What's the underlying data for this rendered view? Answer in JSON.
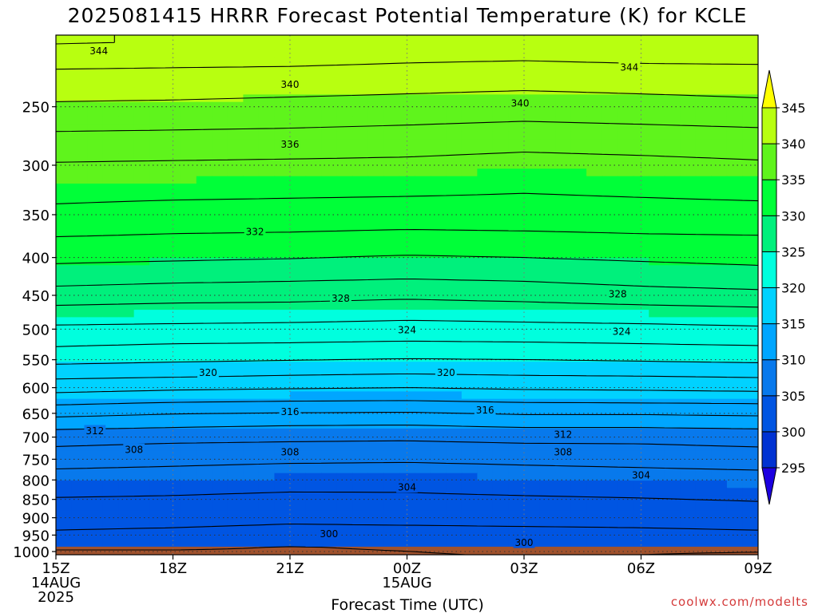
{
  "chart_data": {
    "type": "heatmap",
    "title": "2025081415 HRRR Forecast Potential Temperature (K) for KCLE",
    "xlabel": "Forecast Time (UTC)",
    "ylabel": "",
    "credit": "coolwx.com/modelts",
    "x_ticks": [
      {
        "h": 0,
        "lines": [
          "15Z",
          "14AUG",
          "2025"
        ]
      },
      {
        "h": 3,
        "lines": [
          "18Z"
        ]
      },
      {
        "h": 6,
        "lines": [
          "21Z"
        ]
      },
      {
        "h": 9,
        "lines": [
          "00Z",
          "15AUG"
        ]
      },
      {
        "h": 12,
        "lines": [
          "03Z"
        ]
      },
      {
        "h": 15,
        "lines": [
          "06Z"
        ]
      },
      {
        "h": 18,
        "lines": [
          "09Z"
        ]
      }
    ],
    "xlim": [
      0,
      18
    ],
    "y_ticks": [
      250,
      300,
      350,
      400,
      450,
      500,
      550,
      600,
      650,
      700,
      750,
      800,
      850,
      900,
      950,
      1000
    ],
    "ylim_hPa": [
      200,
      1010
    ],
    "y_scale": "log-pressure, inverted",
    "grid": "dotted",
    "colorbar": {
      "levels": [
        295,
        300,
        305,
        310,
        315,
        320,
        325,
        330,
        335,
        340,
        345
      ],
      "labels": [
        "295",
        "300",
        "305",
        "310",
        "315",
        "320",
        "325",
        "330",
        "335",
        "340",
        "345"
      ],
      "colors": [
        "#1c00e0",
        "#0032d2",
        "#0055e2",
        "#0879ec",
        "#00a6ff",
        "#00d2ff",
        "#00ffde",
        "#00f07c",
        "#00ff38",
        "#5ff41c",
        "#b8ff10",
        "#ffff00"
      ],
      "under_color": "#1c00e0",
      "over_color": "#ffff00"
    },
    "ground_color": "#a0522d",
    "ground_top_hPa": 985,
    "hours": [
      0,
      3,
      6,
      9,
      12,
      15,
      18
    ],
    "profile_pressures_hPa": [
      1000,
      975,
      950,
      925,
      900,
      875,
      850,
      825,
      800,
      775,
      750,
      725,
      700,
      675,
      650,
      625,
      600,
      575,
      550,
      525,
      500,
      475,
      450,
      425,
      400,
      375,
      350,
      325,
      300,
      275,
      250,
      225,
      205
    ],
    "theta_K": [
      [
        299.6,
        300.8,
        301.6,
        302.3,
        302.9,
        303.4,
        303.9,
        304.4,
        305.1,
        305.9,
        306.9,
        307.8,
        308.9,
        310.6,
        312.6,
        314.7,
        316.8,
        318.7,
        320.6,
        322.2,
        323.6,
        325.2,
        327.1,
        328.9,
        330.5,
        332.0,
        333.5,
        334.6,
        335.8,
        337.6,
        339.7,
        341.7,
        344.1
      ],
      [
        299.7,
        300.6,
        301.4,
        302.1,
        302.8,
        303.3,
        303.8,
        304.3,
        304.9,
        305.7,
        306.6,
        307.5,
        308.6,
        310.3,
        312.1,
        314.3,
        316.4,
        318.5,
        320.3,
        321.9,
        323.5,
        325.0,
        326.8,
        328.6,
        330.3,
        331.8,
        333.2,
        334.5,
        335.7,
        337.5,
        339.6,
        341.6,
        343.9
      ],
      [
        299.8,
        300.1,
        301.0,
        301.8,
        302.5,
        303.1,
        303.6,
        304.1,
        304.8,
        305.4,
        306.4,
        307.4,
        308.4,
        310.0,
        311.9,
        314.1,
        316.2,
        318.2,
        320.1,
        321.8,
        323.4,
        324.9,
        326.7,
        328.4,
        330.1,
        331.7,
        333.1,
        334.4,
        335.6,
        337.4,
        339.4,
        341.5,
        343.8
      ],
      [
        299.9,
        300.3,
        301.1,
        301.9,
        302.6,
        303.2,
        303.7,
        304.1,
        304.6,
        305.3,
        306.3,
        307.3,
        308.3,
        309.9,
        311.8,
        314.0,
        316.0,
        318.0,
        319.9,
        321.6,
        323.3,
        324.6,
        326.4,
        328.2,
        329.8,
        331.5,
        333.0,
        334.3,
        335.5,
        337.2,
        339.2,
        341.3,
        343.4
      ],
      [
        300.1,
        300.6,
        301.3,
        302.0,
        302.7,
        303.3,
        303.8,
        304.3,
        304.9,
        305.6,
        306.5,
        307.5,
        308.6,
        310.3,
        312.2,
        314.3,
        316.3,
        318.2,
        320.0,
        321.7,
        323.4,
        324.8,
        326.7,
        328.4,
        330.0,
        331.6,
        333.1,
        334.1,
        335.2,
        336.9,
        339.0,
        341.1,
        343.3
      ],
      [
        300.0,
        300.7,
        301.4,
        302.1,
        302.8,
        303.4,
        303.9,
        304.5,
        305.1,
        305.8,
        306.7,
        307.6,
        308.6,
        310.3,
        312.2,
        314.4,
        316.4,
        318.3,
        320.2,
        321.9,
        323.5,
        325.0,
        327.2,
        328.8,
        330.3,
        331.8,
        333.2,
        334.3,
        335.4,
        337.1,
        339.2,
        341.3,
        343.5
      ],
      [
        299.8,
        300.9,
        301.6,
        302.3,
        303.0,
        303.6,
        304.1,
        304.7,
        305.3,
        306.0,
        306.9,
        307.9,
        308.8,
        310.5,
        312.4,
        314.5,
        316.6,
        318.5,
        320.4,
        322.1,
        323.7,
        325.3,
        327.5,
        329.1,
        330.6,
        331.9,
        333.3,
        334.5,
        335.7,
        337.3,
        339.5,
        341.4,
        343.5
      ]
    ],
    "contour_levels": [
      300,
      302,
      304,
      306,
      308,
      310,
      312,
      314,
      316,
      318,
      320,
      322,
      324,
      326,
      328,
      330,
      332,
      334,
      336,
      338,
      340,
      342,
      344
    ],
    "contour_labels": [
      {
        "value": "344",
        "h": 1.1,
        "hPa": 210
      },
      {
        "value": "344",
        "h": 14.7,
        "hPa": 221
      },
      {
        "value": "340",
        "h": 6.0,
        "hPa": 233
      },
      {
        "value": "340",
        "h": 11.9,
        "hPa": 247
      },
      {
        "value": "336",
        "h": 6.0,
        "hPa": 281
      },
      {
        "value": "332",
        "h": 5.1,
        "hPa": 369
      },
      {
        "value": "328",
        "h": 7.3,
        "hPa": 454
      },
      {
        "value": "328",
        "h": 14.4,
        "hPa": 448
      },
      {
        "value": "324",
        "h": 9.0,
        "hPa": 501
      },
      {
        "value": "324",
        "h": 14.5,
        "hPa": 503
      },
      {
        "value": "320",
        "h": 3.9,
        "hPa": 572
      },
      {
        "value": "320",
        "h": 10.0,
        "hPa": 572
      },
      {
        "value": "316",
        "h": 6.0,
        "hPa": 646
      },
      {
        "value": "316",
        "h": 11.0,
        "hPa": 643
      },
      {
        "value": "312",
        "h": 1.0,
        "hPa": 686
      },
      {
        "value": "312",
        "h": 13.0,
        "hPa": 694
      },
      {
        "value": "308",
        "h": 2.0,
        "hPa": 727
      },
      {
        "value": "308",
        "h": 6.0,
        "hPa": 733
      },
      {
        "value": "308",
        "h": 13.0,
        "hPa": 733
      },
      {
        "value": "304",
        "h": 9.0,
        "hPa": 818
      },
      {
        "value": "304",
        "h": 15.0,
        "hPa": 788
      },
      {
        "value": "300",
        "h": 7.0,
        "hPa": 946
      },
      {
        "value": "300",
        "h": 12.0,
        "hPa": 972
      }
    ]
  }
}
